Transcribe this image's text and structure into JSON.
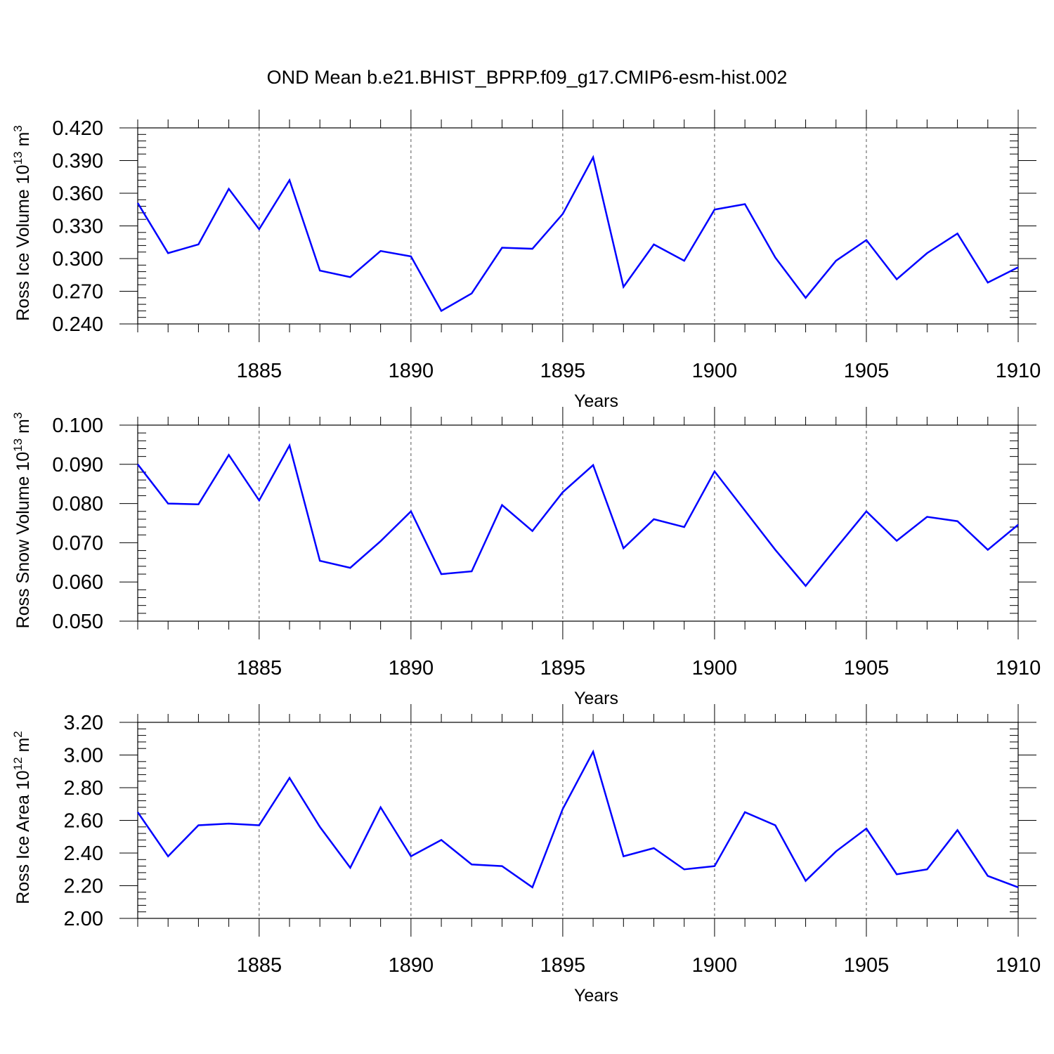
{
  "title": "OND Mean b.e21.BHIST_BPRP.f09_g17.CMIP6-esm-hist.002",
  "line_color": "#0000ff",
  "chart_data": [
    {
      "type": "line",
      "ylabel_main": "Ross Ice Volume 10",
      "ylabel_sup": "13",
      "ylabel_unit": "m",
      "ylabel_unit_sup": "3",
      "xlabel": "Years",
      "xlim": [
        1881,
        1910
      ],
      "ylim": [
        0.24,
        0.42
      ],
      "x_ticks": [
        1885,
        1890,
        1895,
        1900,
        1905,
        1910
      ],
      "y_ticks": [
        0.24,
        0.27,
        0.3,
        0.33,
        0.36,
        0.39,
        0.42
      ],
      "y_tick_labels": [
        "0.240",
        "0.270",
        "0.300",
        "0.330",
        "0.360",
        "0.390",
        "0.420"
      ],
      "x_tick_labels": [
        "1885",
        "1890",
        "1895",
        "1900",
        "1905",
        "1910"
      ],
      "x": [
        1881,
        1882,
        1883,
        1884,
        1885,
        1886,
        1887,
        1888,
        1889,
        1890,
        1891,
        1892,
        1893,
        1894,
        1895,
        1896,
        1897,
        1898,
        1899,
        1900,
        1901,
        1902,
        1903,
        1904,
        1905,
        1906,
        1907,
        1908,
        1909,
        1910
      ],
      "values": [
        0.351,
        0.305,
        0.313,
        0.364,
        0.327,
        0.372,
        0.289,
        0.283,
        0.307,
        0.302,
        0.252,
        0.268,
        0.31,
        0.309,
        0.341,
        0.393,
        0.274,
        0.313,
        0.298,
        0.345,
        0.35,
        0.301,
        0.264,
        0.298,
        0.317,
        0.281,
        0.305,
        0.323,
        0.278,
        0.292
      ]
    },
    {
      "type": "line",
      "ylabel_main": "Ross Snow Volume 10",
      "ylabel_sup": "13",
      "ylabel_unit": "m",
      "ylabel_unit_sup": "3",
      "xlabel": "Years",
      "xlim": [
        1881,
        1910
      ],
      "ylim": [
        0.05,
        0.1
      ],
      "x_ticks": [
        1885,
        1890,
        1895,
        1900,
        1905,
        1910
      ],
      "y_ticks": [
        0.05,
        0.06,
        0.07,
        0.08,
        0.09,
        0.1
      ],
      "y_tick_labels": [
        "0.050",
        "0.060",
        "0.070",
        "0.080",
        "0.090",
        "0.100"
      ],
      "x_tick_labels": [
        "1885",
        "1890",
        "1895",
        "1900",
        "1905",
        "1910"
      ],
      "x": [
        1881,
        1882,
        1883,
        1884,
        1885,
        1886,
        1887,
        1888,
        1889,
        1890,
        1891,
        1892,
        1893,
        1894,
        1895,
        1896,
        1897,
        1898,
        1899,
        1900,
        1901,
        1902,
        1903,
        1904,
        1905,
        1906,
        1907,
        1908,
        1909,
        1910
      ],
      "values": [
        0.09,
        0.08,
        0.0798,
        0.0924,
        0.0808,
        0.0948,
        0.0654,
        0.0636,
        0.0704,
        0.078,
        0.062,
        0.0627,
        0.0796,
        0.073,
        0.0829,
        0.0898,
        0.0686,
        0.076,
        0.074,
        0.0882,
        0.0782,
        0.0682,
        0.059,
        0.0686,
        0.078,
        0.0705,
        0.0766,
        0.0755,
        0.0682,
        0.0746
      ]
    },
    {
      "type": "line",
      "ylabel_main": "Ross Ice Area 10",
      "ylabel_sup": "12",
      "ylabel_unit": "m",
      "ylabel_unit_sup": "2",
      "xlabel": "Years",
      "xlim": [
        1881,
        1910
      ],
      "ylim": [
        2.0,
        3.2
      ],
      "x_ticks": [
        1885,
        1890,
        1895,
        1900,
        1905,
        1910
      ],
      "y_ticks": [
        2.0,
        2.2,
        2.4,
        2.6,
        2.8,
        3.0,
        3.2
      ],
      "y_tick_labels": [
        "2.00",
        "2.20",
        "2.40",
        "2.60",
        "2.80",
        "3.00",
        "3.20"
      ],
      "x_tick_labels": [
        "1885",
        "1890",
        "1895",
        "1900",
        "1905",
        "1910"
      ],
      "x": [
        1881,
        1882,
        1883,
        1884,
        1885,
        1886,
        1887,
        1888,
        1889,
        1890,
        1891,
        1892,
        1893,
        1894,
        1895,
        1896,
        1897,
        1898,
        1899,
        1900,
        1901,
        1902,
        1903,
        1904,
        1905,
        1906,
        1907,
        1908,
        1909,
        1910
      ],
      "values": [
        2.65,
        2.38,
        2.57,
        2.58,
        2.57,
        2.86,
        2.56,
        2.31,
        2.68,
        2.38,
        2.48,
        2.33,
        2.32,
        2.19,
        2.67,
        3.02,
        2.38,
        2.43,
        2.3,
        2.32,
        2.65,
        2.57,
        2.23,
        2.41,
        2.55,
        2.27,
        2.3,
        2.54,
        2.26,
        2.19
      ]
    }
  ]
}
